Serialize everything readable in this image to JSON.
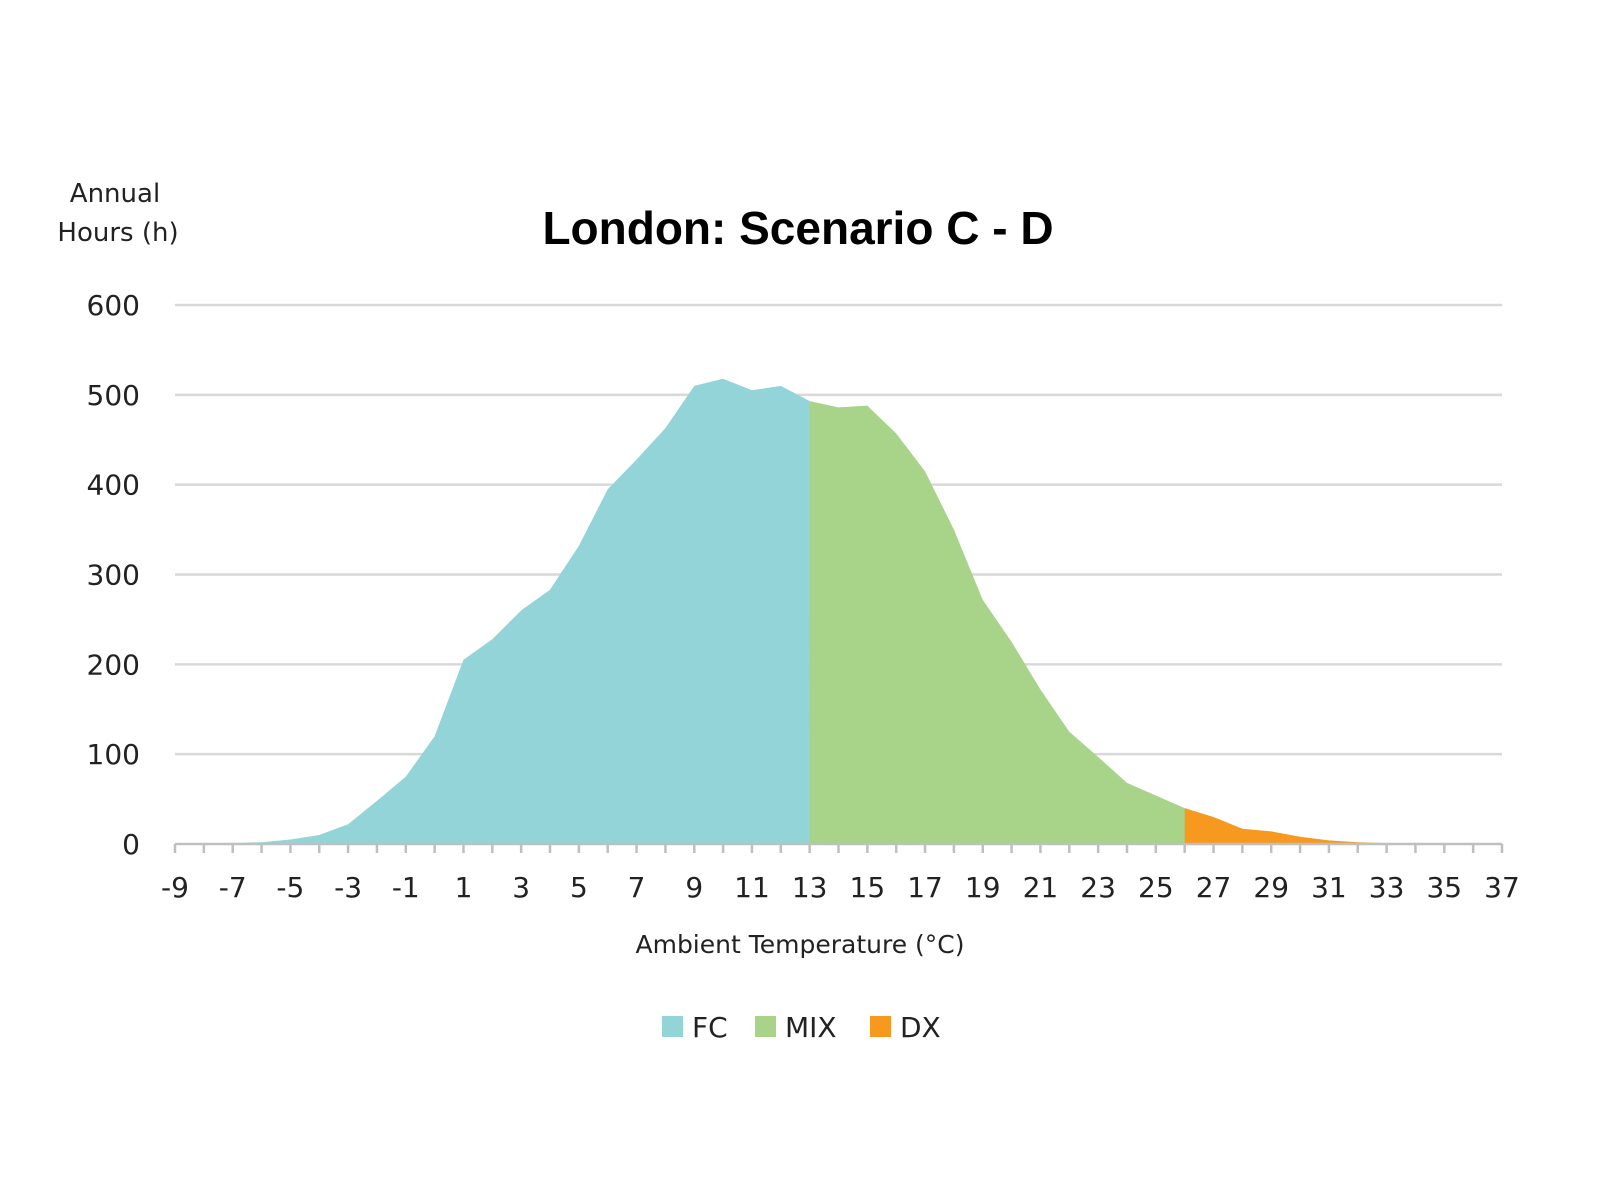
{
  "chart_data": {
    "type": "area",
    "title": "London: Scenario C - D",
    "ylabel_lines": [
      "Annual",
      "Hours (h)"
    ],
    "xlabel": "Ambient Temperature (°C)",
    "xlim": [
      -9,
      37
    ],
    "ylim": [
      0,
      600
    ],
    "yticks": [
      0,
      100,
      200,
      300,
      400,
      500,
      600
    ],
    "xticks": [
      -9,
      -7,
      -5,
      -3,
      -1,
      1,
      3,
      5,
      7,
      9,
      11,
      13,
      15,
      17,
      19,
      21,
      23,
      25,
      27,
      29,
      31,
      33,
      35,
      37
    ],
    "grid": true,
    "legend_position": "bottom",
    "colors": {
      "grid": "#d9d9d9",
      "axis": "#bfbfbf"
    },
    "series": [
      {
        "name": "FC",
        "color": "#92d4d7",
        "points": [
          [
            -9,
            0
          ],
          [
            -8,
            0
          ],
          [
            -7,
            1
          ],
          [
            -6,
            2
          ],
          [
            -5,
            5
          ],
          [
            -4,
            10
          ],
          [
            -3,
            22
          ],
          [
            -2,
            48
          ],
          [
            -1,
            75
          ],
          [
            0,
            120
          ],
          [
            1,
            205
          ],
          [
            2,
            228
          ],
          [
            3,
            260
          ],
          [
            4,
            283
          ],
          [
            5,
            332
          ],
          [
            6,
            395
          ],
          [
            7,
            428
          ],
          [
            8,
            463
          ],
          [
            9,
            510
          ],
          [
            10,
            518
          ],
          [
            11,
            505
          ],
          [
            12,
            510
          ],
          [
            13,
            493
          ],
          [
            14,
            0
          ]
        ]
      },
      {
        "name": "MIX",
        "color": "#a7d489",
        "points": [
          [
            13,
            493
          ],
          [
            14,
            486
          ],
          [
            15,
            488
          ],
          [
            16,
            457
          ],
          [
            17,
            415
          ],
          [
            18,
            350
          ],
          [
            19,
            272
          ],
          [
            20,
            225
          ],
          [
            21,
            172
          ],
          [
            22,
            125
          ],
          [
            23,
            97
          ],
          [
            24,
            68
          ],
          [
            25,
            54
          ],
          [
            26,
            40
          ],
          [
            27,
            0
          ]
        ]
      },
      {
        "name": "DX",
        "color": "#f7991f",
        "points": [
          [
            26,
            40
          ],
          [
            27,
            30
          ],
          [
            28,
            17
          ],
          [
            29,
            14
          ],
          [
            30,
            8
          ],
          [
            31,
            4
          ],
          [
            32,
            2
          ],
          [
            33,
            1
          ],
          [
            34,
            0
          ]
        ]
      }
    ]
  }
}
